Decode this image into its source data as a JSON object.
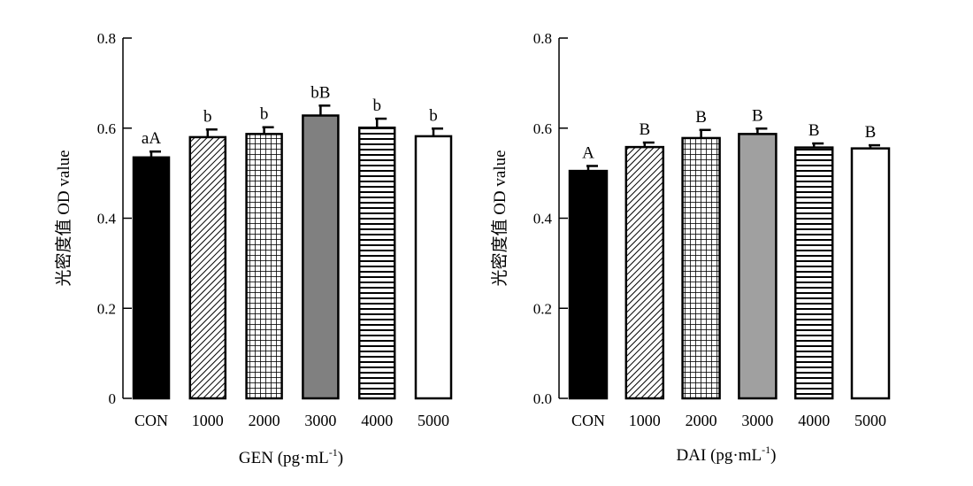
{
  "chart_data": [
    {
      "type": "bar",
      "xlabel": "GEN (pg·mL",
      "xlabel_sup": "-1",
      "xlabel_close": ")",
      "ylabel": "光密度值 OD value",
      "ylim": [
        0,
        0.8
      ],
      "yticks": [
        "0",
        "0.2",
        "0.4",
        "0.6",
        "0.8"
      ],
      "categories": [
        "CON",
        "1000",
        "2000",
        "3000",
        "4000",
        "5000"
      ],
      "values": [
        0.535,
        0.58,
        0.587,
        0.628,
        0.601,
        0.582
      ],
      "errors": [
        0.013,
        0.017,
        0.015,
        0.022,
        0.02,
        0.017
      ],
      "labels": [
        "aA",
        "b",
        "b",
        "bB",
        "b",
        "b"
      ],
      "patterns": [
        "solid-black",
        "diagonal",
        "grid",
        "solid-gray",
        "horizontal",
        "empty"
      ]
    },
    {
      "type": "bar",
      "xlabel": "DAI (pg·mL",
      "xlabel_sup": "-1",
      "xlabel_close": ")",
      "ylabel": "光密度值 OD value",
      "ylim": [
        0,
        0.8
      ],
      "yticks": [
        "0.0",
        "0.2",
        "0.4",
        "0.6",
        "0.8"
      ],
      "categories": [
        "CON",
        "1000",
        "2000",
        "3000",
        "4000",
        "5000"
      ],
      "values": [
        0.505,
        0.558,
        0.578,
        0.587,
        0.557,
        0.555
      ],
      "errors": [
        0.011,
        0.01,
        0.018,
        0.012,
        0.009,
        0.007
      ],
      "labels": [
        "A",
        "B",
        "B",
        "B",
        "B",
        "B"
      ],
      "patterns": [
        "solid-black",
        "diagonal",
        "grid",
        "solid-gray",
        "horizontal",
        "empty"
      ]
    }
  ],
  "colors": {
    "black": "#000000",
    "gray_gen": "#808080",
    "gray_dai": "#a0a0a0",
    "white": "#ffffff"
  }
}
